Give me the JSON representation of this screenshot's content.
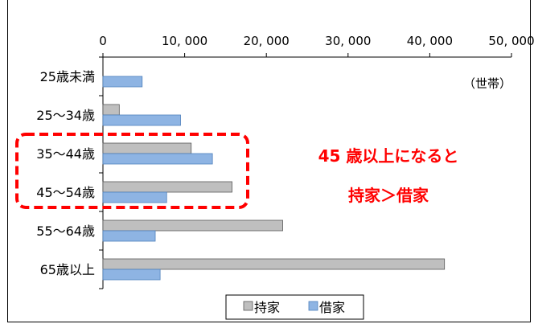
{
  "chart_data": {
    "type": "bar",
    "orientation": "horizontal",
    "categories": [
      "25歳未満",
      "25～34歳",
      "35～44歳",
      "45～54歳",
      "55～64歳",
      "65歳以上"
    ],
    "series": [
      {
        "name": "持家",
        "color": "#bfbfbf",
        "values": [
          0,
          2000,
          10800,
          15800,
          22000,
          41800
        ]
      },
      {
        "name": "借家",
        "color": "#8eb4e3",
        "values": [
          4800,
          9500,
          13400,
          7800,
          6400,
          7000
        ]
      }
    ],
    "x_ticks": [
      "0",
      "10, 000",
      "20, 000",
      "30, 000",
      "40, 000",
      "50, 000"
    ],
    "xlim": [
      0,
      50000
    ],
    "unit_label": "（世帯）",
    "annotation": {
      "line1": "45 歳以上になると",
      "line2": "持家＞借家"
    },
    "highlight": {
      "categories": [
        "35～44歳",
        "45～54歳"
      ],
      "color": "#ff0000"
    },
    "legend_position": "bottom",
    "grid": false
  }
}
